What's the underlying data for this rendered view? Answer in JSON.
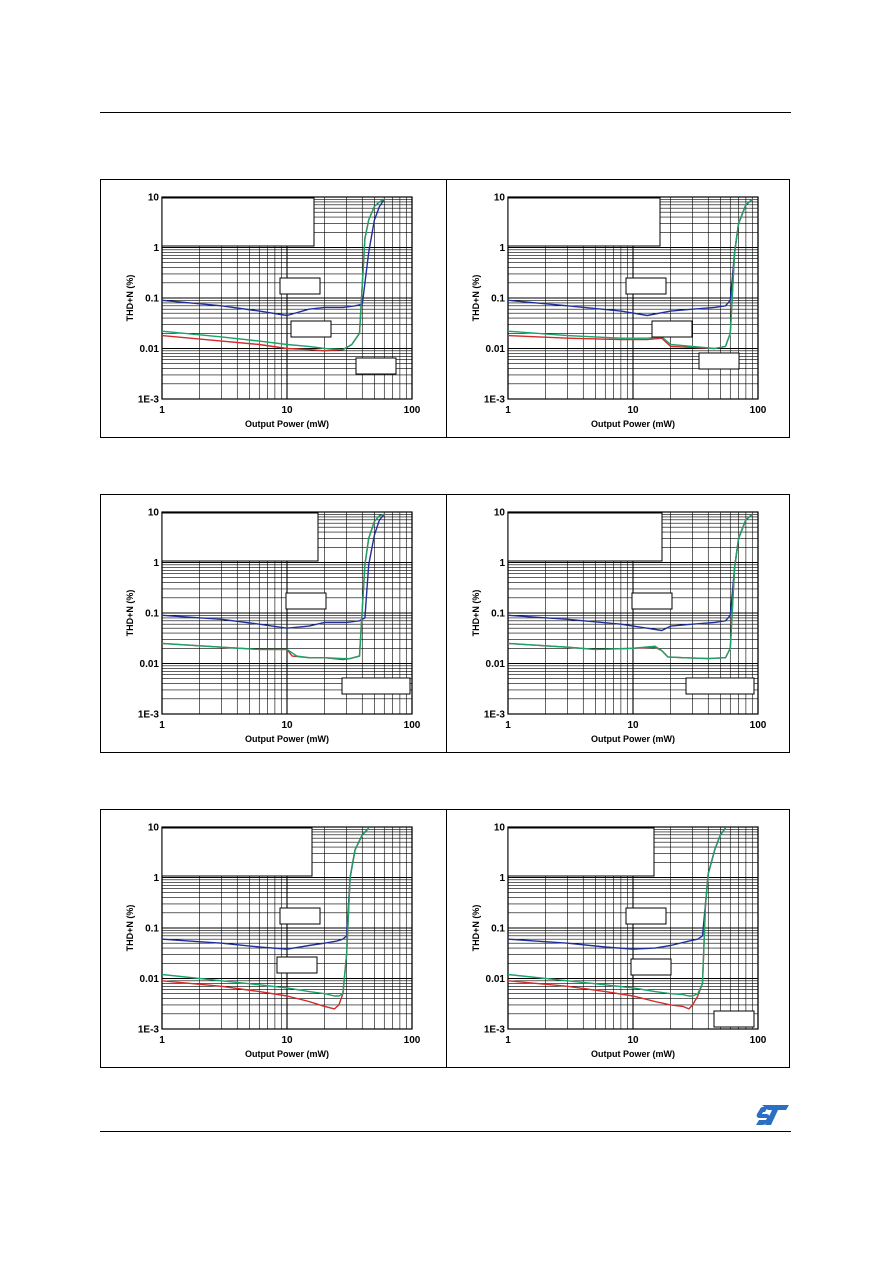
{
  "colors": {
    "series_a": "#1f2f9a",
    "series_b": "#d42a2a",
    "series_c": "#1aa36a",
    "grid": "#000000"
  },
  "brand": {
    "logo": "st-logo-icon"
  },
  "chart_data": [
    {
      "type": "line",
      "xscale": "log",
      "yscale": "log",
      "xlim": [
        1,
        100
      ],
      "ylim": [
        0.001,
        10
      ],
      "xlabel": "Output Power (mW)",
      "ylabel": "THD+N (%)",
      "xticks": [
        "1",
        "10",
        "100"
      ],
      "yticks": [
        "1E-3",
        "0.01",
        "0.1",
        "1",
        "10"
      ],
      "grid": true,
      "series": [
        {
          "color": "#1f2f9a",
          "x": [
            1,
            3,
            6,
            10,
            15,
            20,
            28,
            35,
            40,
            45,
            50,
            55,
            60
          ],
          "y": [
            0.09,
            0.07,
            0.055,
            0.045,
            0.06,
            0.065,
            0.065,
            0.07,
            0.075,
            0.8,
            3.5,
            6.5,
            9
          ]
        },
        {
          "color": "#d42a2a",
          "x": [
            1,
            3,
            6,
            10,
            15,
            20,
            28,
            33,
            38,
            42,
            45,
            50,
            55,
            60
          ],
          "y": [
            0.018,
            0.014,
            0.012,
            0.01,
            0.0095,
            0.009,
            0.0095,
            0.012,
            0.02,
            1.5,
            3.5,
            6.5,
            8,
            9
          ]
        },
        {
          "color": "#1aa36a",
          "x": [
            1,
            3,
            6,
            10,
            15,
            20,
            28,
            33,
            38,
            42,
            45,
            50,
            55,
            60
          ],
          "y": [
            0.022,
            0.017,
            0.014,
            0.012,
            0.011,
            0.01,
            0.0095,
            0.012,
            0.02,
            1.5,
            3.5,
            6.5,
            8,
            9
          ]
        }
      ]
    },
    {
      "type": "line",
      "xscale": "log",
      "yscale": "log",
      "xlim": [
        1,
        100
      ],
      "ylim": [
        0.001,
        10
      ],
      "xlabel": "Output Power (mW)",
      "ylabel": "THD+N (%)",
      "xticks": [
        "1",
        "10",
        "100"
      ],
      "yticks": [
        "1E-3",
        "0.01",
        "0.1",
        "1",
        "10"
      ],
      "grid": true,
      "series": [
        {
          "color": "#1f2f9a",
          "x": [
            1,
            3,
            8,
            13,
            20,
            30,
            45,
            55,
            60,
            65,
            70,
            80,
            90
          ],
          "y": [
            0.09,
            0.07,
            0.055,
            0.045,
            0.055,
            0.06,
            0.065,
            0.07,
            0.09,
            0.8,
            3,
            7,
            9
          ]
        },
        {
          "color": "#d42a2a",
          "x": [
            1,
            3,
            8,
            13,
            17,
            20,
            30,
            45,
            55,
            60,
            65,
            70,
            80,
            90
          ],
          "y": [
            0.018,
            0.016,
            0.015,
            0.015,
            0.016,
            0.011,
            0.0105,
            0.01,
            0.011,
            0.02,
            0.8,
            3,
            7,
            9
          ]
        },
        {
          "color": "#1aa36a",
          "x": [
            1,
            3,
            8,
            13,
            17,
            20,
            30,
            45,
            55,
            60,
            65,
            70,
            80,
            90
          ],
          "y": [
            0.022,
            0.018,
            0.016,
            0.016,
            0.017,
            0.012,
            0.011,
            0.01,
            0.011,
            0.02,
            0.8,
            3,
            7,
            9
          ]
        }
      ]
    },
    {
      "type": "line",
      "xscale": "log",
      "yscale": "log",
      "xlim": [
        1,
        100
      ],
      "ylim": [
        0.001,
        10
      ],
      "xlabel": "Output Power (mW)",
      "ylabel": "THD+N (%)",
      "xticks": [
        "1",
        "10",
        "100"
      ],
      "yticks": [
        "1E-3",
        "0.01",
        "0.1",
        "1",
        "10"
      ],
      "grid": true,
      "series": [
        {
          "color": "#1f2f9a",
          "x": [
            1,
            3,
            6,
            10,
            15,
            20,
            30,
            38,
            42,
            45,
            50,
            55,
            60
          ],
          "y": [
            0.09,
            0.075,
            0.06,
            0.05,
            0.055,
            0.065,
            0.065,
            0.07,
            0.08,
            0.9,
            3.5,
            7,
            9
          ]
        },
        {
          "color": "#d42a2a",
          "x": [
            1,
            3,
            6,
            10,
            11,
            15,
            20,
            28,
            32,
            38,
            42,
            45,
            50,
            55,
            60
          ],
          "y": [
            0.025,
            0.021,
            0.019,
            0.019,
            0.014,
            0.013,
            0.013,
            0.012,
            0.0125,
            0.014,
            0.9,
            3,
            6.5,
            8.5,
            9
          ]
        },
        {
          "color": "#1aa36a",
          "x": [
            1,
            3,
            6,
            10,
            12,
            15,
            20,
            28,
            32,
            38,
            42,
            45,
            50,
            55,
            60
          ],
          "y": [
            0.025,
            0.021,
            0.019,
            0.019,
            0.014,
            0.013,
            0.013,
            0.0125,
            0.0125,
            0.014,
            0.9,
            3,
            6.5,
            8.5,
            9
          ]
        }
      ]
    },
    {
      "type": "line",
      "xscale": "log",
      "yscale": "log",
      "xlim": [
        1,
        100
      ],
      "ylim": [
        0.001,
        10
      ],
      "xlabel": "Output Power (mW)",
      "ylabel": "THD+N (%)",
      "xticks": [
        "1",
        "10",
        "100"
      ],
      "yticks": [
        "1E-3",
        "0.01",
        "0.1",
        "1",
        "10"
      ],
      "grid": true,
      "series": [
        {
          "color": "#1f2f9a",
          "x": [
            1,
            3,
            8,
            13,
            17,
            20,
            30,
            45,
            55,
            60,
            65,
            70,
            80,
            90
          ],
          "y": [
            0.09,
            0.075,
            0.06,
            0.05,
            0.045,
            0.055,
            0.06,
            0.065,
            0.07,
            0.09,
            0.8,
            3,
            7,
            9
          ]
        },
        {
          "color": "#d42a2a",
          "x": [
            1,
            3,
            5,
            10,
            15,
            17,
            19,
            25,
            40,
            55,
            60,
            65,
            70,
            80,
            90
          ],
          "y": [
            0.025,
            0.021,
            0.019,
            0.02,
            0.021,
            0.018,
            0.0135,
            0.013,
            0.0125,
            0.013,
            0.02,
            0.8,
            3,
            7,
            9
          ]
        },
        {
          "color": "#1aa36a",
          "x": [
            1,
            3,
            5,
            10,
            15,
            17,
            19,
            25,
            40,
            55,
            60,
            65,
            70,
            80,
            90
          ],
          "y": [
            0.025,
            0.021,
            0.019,
            0.02,
            0.022,
            0.018,
            0.0135,
            0.013,
            0.0125,
            0.013,
            0.02,
            0.8,
            3,
            7,
            9
          ]
        }
      ]
    },
    {
      "type": "line",
      "xscale": "log",
      "yscale": "log",
      "xlim": [
        1,
        100
      ],
      "ylim": [
        0.001,
        10
      ],
      "xlabel": "Output Power (mW)",
      "ylabel": "THD+N (%)",
      "xticks": [
        "1",
        "10",
        "100"
      ],
      "yticks": [
        "1E-3",
        "0.01",
        "0.1",
        "1",
        "10"
      ],
      "grid": true,
      "series": [
        {
          "color": "#1f2f9a",
          "x": [
            1,
            3,
            6,
            10,
            15,
            20,
            25,
            28,
            30,
            32,
            35,
            40,
            45
          ],
          "y": [
            0.06,
            0.05,
            0.042,
            0.038,
            0.045,
            0.05,
            0.055,
            0.06,
            0.07,
            1,
            3.5,
            7,
            9.5
          ]
        },
        {
          "color": "#d42a2a",
          "x": [
            1,
            3,
            6,
            10,
            15,
            20,
            24,
            26,
            28,
            30,
            32,
            35,
            40,
            45
          ],
          "y": [
            0.009,
            0.007,
            0.0055,
            0.0045,
            0.0035,
            0.0028,
            0.0025,
            0.003,
            0.005,
            0.03,
            1,
            3.5,
            7,
            9.5
          ]
        },
        {
          "color": "#1aa36a",
          "x": [
            1,
            3,
            6,
            10,
            15,
            20,
            24,
            26,
            28,
            30,
            32,
            35,
            40,
            45
          ],
          "y": [
            0.012,
            0.009,
            0.0075,
            0.0065,
            0.0055,
            0.005,
            0.0045,
            0.0045,
            0.005,
            0.03,
            1,
            3.5,
            7,
            9.5
          ]
        }
      ]
    },
    {
      "type": "line",
      "xscale": "log",
      "yscale": "log",
      "xlim": [
        1,
        100
      ],
      "ylim": [
        0.001,
        10
      ],
      "xlabel": "Output Power (mW)",
      "ylabel": "THD+N (%)",
      "xticks": [
        "1",
        "10",
        "100"
      ],
      "yticks": [
        "1E-3",
        "0.01",
        "0.1",
        "1",
        "10"
      ],
      "grid": true,
      "series": [
        {
          "color": "#1f2f9a",
          "x": [
            1,
            3,
            6,
            10,
            15,
            20,
            28,
            33,
            36,
            38,
            40,
            45,
            50,
            55
          ],
          "y": [
            0.06,
            0.05,
            0.042,
            0.038,
            0.04,
            0.045,
            0.055,
            0.06,
            0.07,
            0.3,
            1.2,
            3.5,
            7,
            9.5
          ]
        },
        {
          "color": "#d42a2a",
          "x": [
            1,
            3,
            6,
            10,
            15,
            20,
            25,
            28,
            30,
            33,
            36,
            38,
            40,
            45,
            50,
            55
          ],
          "y": [
            0.009,
            0.007,
            0.0055,
            0.0045,
            0.0035,
            0.003,
            0.0028,
            0.0025,
            0.003,
            0.0045,
            0.008,
            0.3,
            1.2,
            3.5,
            7,
            9.5
          ]
        },
        {
          "color": "#1aa36a",
          "x": [
            1,
            3,
            6,
            10,
            15,
            20,
            25,
            28,
            30,
            33,
            36,
            38,
            40,
            45,
            50,
            55
          ],
          "y": [
            0.012,
            0.009,
            0.0075,
            0.0065,
            0.0055,
            0.005,
            0.0048,
            0.0045,
            0.0045,
            0.005,
            0.008,
            0.3,
            1.2,
            3.5,
            7,
            9.5
          ]
        }
      ]
    }
  ]
}
